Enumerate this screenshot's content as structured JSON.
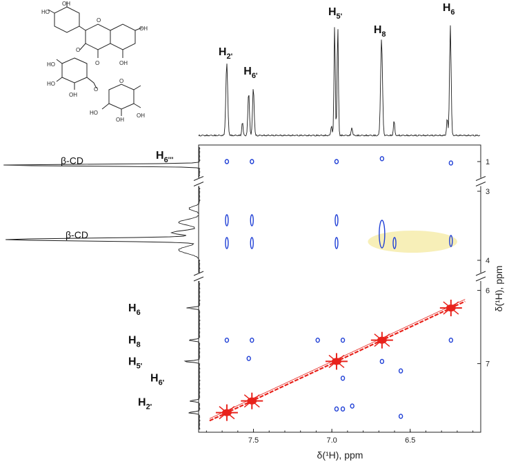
{
  "chart_data": {
    "type": "scatter",
    "subtype": "2D NMR (ROESY) contour map with 1D projections",
    "xlabel": "δ(¹H), ppm",
    "ylabel": "δ(¹H), ppm",
    "x_ticks": [
      "7.5",
      "7.0",
      "6.5"
    ],
    "x_tick_values": [
      7.5,
      7.0,
      6.5
    ],
    "y_ticks": [
      "1",
      "3",
      "4",
      "6",
      "7"
    ],
    "y_tick_values": [
      1,
      3,
      4,
      6,
      7
    ],
    "xlim": [
      7.85,
      6.05
    ],
    "y_segments": [
      [
        0.8,
        1.2
      ],
      [
        2.95,
        4.15
      ],
      [
        5.9,
        7.9
      ]
    ],
    "top_labels": [
      {
        "sub": "2'",
        "ppm": 7.67
      },
      {
        "sub": "6'",
        "ppm": 7.51
      },
      {
        "sub": "5'",
        "ppm": 6.97
      },
      {
        "sub": "8",
        "ppm": 6.68
      },
      {
        "sub": "6",
        "ppm": 6.24
      }
    ],
    "left_labels": [
      {
        "text": "β-CD",
        "ppm": 1.05
      },
      {
        "text": "H",
        "sub": "6'''",
        "ppm": 1.0
      },
      {
        "text": "β-CD",
        "ppm": 3.7
      },
      {
        "text": "H",
        "sub": "6",
        "ppm": 6.24
      },
      {
        "text": "H",
        "sub": "8",
        "ppm": 6.68
      },
      {
        "text": "H",
        "sub": "5'",
        "ppm": 6.97
      },
      {
        "text": "H",
        "sub": "6'",
        "ppm": 7.51
      },
      {
        "text": "H",
        "sub": "2'",
        "ppm": 7.67
      }
    ],
    "diagonal_peaks": [
      {
        "x": 7.67,
        "y": 7.67
      },
      {
        "x": 7.51,
        "y": 7.51
      },
      {
        "x": 6.97,
        "y": 6.97
      },
      {
        "x": 6.68,
        "y": 6.68
      },
      {
        "x": 6.24,
        "y": 6.24
      }
    ],
    "cross_peaks": [
      {
        "x": 7.67,
        "y": 1.0
      },
      {
        "x": 7.51,
        "y": 1.0
      },
      {
        "x": 6.97,
        "y": 1.0
      },
      {
        "x": 6.68,
        "y": 0.96
      },
      {
        "x": 6.24,
        "y": 1.02
      },
      {
        "x": 7.67,
        "y": 3.42
      },
      {
        "x": 7.51,
        "y": 3.42
      },
      {
        "x": 6.97,
        "y": 3.42
      },
      {
        "x": 7.67,
        "y": 3.75
      },
      {
        "x": 7.51,
        "y": 3.75
      },
      {
        "x": 6.97,
        "y": 3.75
      },
      {
        "x": 6.68,
        "y": 3.62
      },
      {
        "x": 6.6,
        "y": 3.75
      },
      {
        "x": 6.24,
        "y": 3.72
      },
      {
        "x": 7.67,
        "y": 6.68
      },
      {
        "x": 7.51,
        "y": 6.68
      },
      {
        "x": 7.09,
        "y": 6.68
      },
      {
        "x": 6.93,
        "y": 6.68
      },
      {
        "x": 6.24,
        "y": 6.68
      },
      {
        "x": 7.53,
        "y": 6.93
      },
      {
        "x": 6.68,
        "y": 6.97
      },
      {
        "x": 6.93,
        "y": 7.2
      },
      {
        "x": 6.56,
        "y": 7.1
      },
      {
        "x": 6.97,
        "y": 7.62
      },
      {
        "x": 6.93,
        "y": 7.62
      },
      {
        "x": 6.87,
        "y": 7.58
      },
      {
        "x": 6.56,
        "y": 7.72
      }
    ],
    "highlight": {
      "x_range": [
        6.77,
        6.2
      ],
      "y": 3.73,
      "color": "#f7efb8"
    },
    "colors": {
      "diagonal": "#e8221b",
      "cross": "#1f3fd6",
      "trace": "#1a1a1a"
    }
  }
}
